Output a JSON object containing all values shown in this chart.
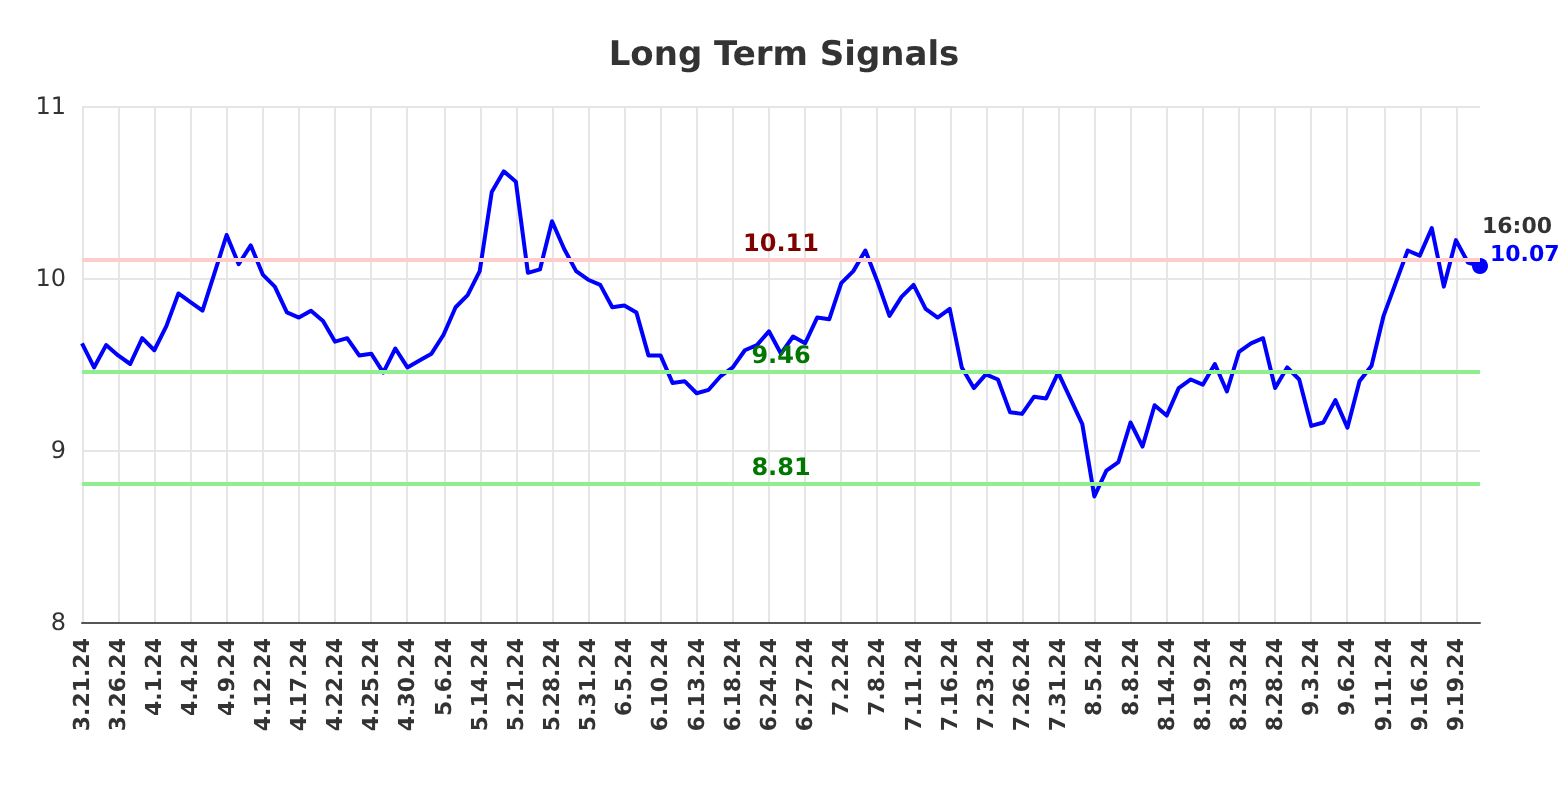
{
  "chart_data": {
    "type": "line",
    "title": "Long Term Signals",
    "categories": [
      "3.21.24",
      null,
      null,
      "3.26.24",
      null,
      null,
      "4.1.24",
      null,
      null,
      "4.4.24",
      null,
      null,
      "4.9.24",
      null,
      null,
      "4.12.24",
      null,
      null,
      "4.17.24",
      null,
      null,
      "4.22.24",
      null,
      null,
      "4.25.24",
      null,
      null,
      "4.30.24",
      null,
      null,
      "5.6.24",
      null,
      null,
      "5.14.24",
      null,
      null,
      "5.21.24",
      null,
      null,
      "5.28.24",
      null,
      null,
      "5.31.24",
      null,
      null,
      "6.5.24",
      null,
      null,
      "6.10.24",
      null,
      null,
      "6.13.24",
      null,
      null,
      "6.18.24",
      null,
      null,
      "6.24.24",
      null,
      null,
      "6.27.24",
      null,
      null,
      "7.2.24",
      null,
      null,
      "7.8.24",
      null,
      null,
      "7.11.24",
      null,
      null,
      "7.16.24",
      null,
      null,
      "7.23.24",
      null,
      null,
      "7.26.24",
      null,
      null,
      "7.31.24",
      null,
      null,
      "8.5.24",
      null,
      null,
      "8.8.24",
      null,
      null,
      "8.14.24",
      null,
      null,
      "8.19.24",
      null,
      null,
      "8.23.24",
      null,
      null,
      "8.28.24",
      null,
      null,
      "9.3.24",
      null,
      null,
      "9.6.24",
      null,
      null,
      "9.11.24",
      null,
      null,
      "9.16.24",
      null,
      null,
      "9.19.24",
      null,
      null
    ],
    "series": [
      {
        "color": "#0000ff",
        "values": [
          9.62,
          9.48,
          9.61,
          9.55,
          9.5,
          9.65,
          9.58,
          9.72,
          9.91,
          9.86,
          9.81,
          10.03,
          10.25,
          10.08,
          10.19,
          10.02,
          9.95,
          9.8,
          9.77,
          9.81,
          9.75,
          9.63,
          9.65,
          9.55,
          9.56,
          9.45,
          9.59,
          9.48,
          9.52,
          9.56,
          9.67,
          9.83,
          9.9,
          10.04,
          10.5,
          10.62,
          10.56,
          10.03,
          10.05,
          10.33,
          10.17,
          10.04,
          9.99,
          9.96,
          9.83,
          9.84,
          9.8,
          9.55,
          9.55,
          9.39,
          9.4,
          9.33,
          9.35,
          9.43,
          9.48,
          9.58,
          9.61,
          9.69,
          9.56,
          9.66,
          9.62,
          9.77,
          9.76,
          9.97,
          10.04,
          10.16,
          9.98,
          9.78,
          9.89,
          9.96,
          9.82,
          9.77,
          9.82,
          9.48,
          9.36,
          9.44,
          9.41,
          9.22,
          9.21,
          9.31,
          9.3,
          9.45,
          9.3,
          9.15,
          8.73,
          8.88,
          8.93,
          9.16,
          9.02,
          9.26,
          9.2,
          9.36,
          9.41,
          9.38,
          9.5,
          9.34,
          9.57,
          9.62,
          9.65,
          9.36,
          9.48,
          9.41,
          9.14,
          9.16,
          9.29,
          9.13,
          9.4,
          9.49,
          9.78,
          9.97,
          10.16,
          10.13,
          10.29,
          9.95,
          10.22,
          10.09,
          10.07
        ],
        "value_labels": [
          null,
          null,
          null,
          null,
          null,
          null,
          null,
          null,
          null,
          null,
          null,
          null,
          null,
          null,
          null,
          null,
          null,
          null,
          null,
          null,
          null,
          null,
          null,
          null,
          null,
          null,
          null,
          null,
          null,
          null,
          null,
          null,
          null,
          null,
          null,
          null,
          null,
          null,
          null,
          null,
          null,
          null,
          null,
          null,
          null,
          null,
          null,
          null,
          null,
          null,
          null,
          null,
          null,
          null,
          null,
          null,
          null,
          null,
          null,
          null,
          null,
          null,
          null,
          null,
          null,
          null,
          null,
          null,
          null,
          null,
          null,
          null,
          null,
          null,
          null,
          null,
          null,
          null,
          null,
          null,
          null,
          null,
          null,
          null,
          null,
          null,
          null,
          null,
          null,
          null,
          null,
          null,
          null,
          null,
          null,
          null,
          null,
          null,
          null,
          null,
          null,
          null,
          null,
          null,
          null,
          null,
          null,
          null,
          null,
          null,
          null,
          null,
          null,
          null,
          null,
          null,
          "10.07"
        ]
      }
    ],
    "annotations": [
      "16:00"
    ],
    "ref_lines": [
      {
        "axis": "y",
        "value": 10.11,
        "label": "10.11",
        "color": "#ffcccc"
      },
      {
        "axis": "y",
        "value": 9.46,
        "label": "9.46",
        "color": "#90ee90"
      },
      {
        "axis": "y",
        "value": 8.81,
        "label": "8.81",
        "color": "#90ee90"
      }
    ],
    "ylim": [
      8,
      11
    ],
    "yticks": [
      8,
      9,
      10,
      11
    ],
    "grid": true,
    "marker": "none",
    "line_style": "solid"
  }
}
